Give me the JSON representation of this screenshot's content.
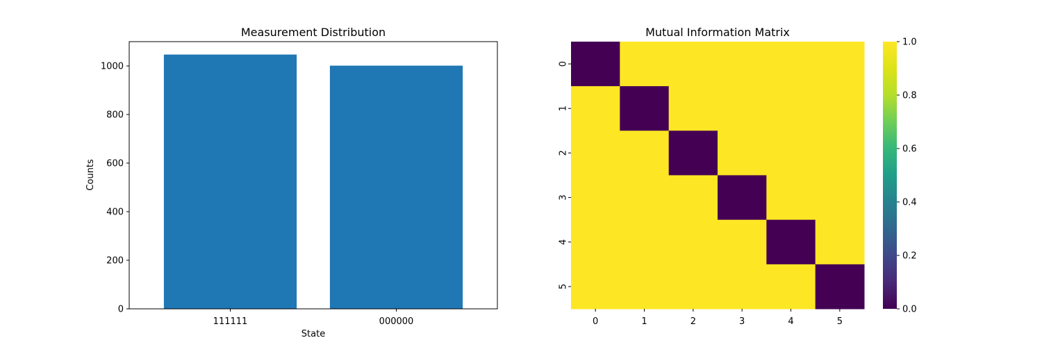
{
  "chart_data": [
    {
      "type": "bar",
      "title": "Measurement Distribution",
      "xlabel": "State",
      "ylabel": "Counts",
      "categories": [
        "111111",
        "000000"
      ],
      "values": [
        1047,
        1001
      ],
      "ylim": [
        0,
        1100
      ],
      "yticks": [
        0,
        200,
        400,
        600,
        800,
        1000
      ],
      "grid": false,
      "bar_color": "#1f77b4"
    },
    {
      "type": "heatmap",
      "title": "Mutual Information Matrix",
      "x_labels": [
        "0",
        "1",
        "2",
        "3",
        "4",
        "5"
      ],
      "y_labels": [
        "0",
        "1",
        "2",
        "3",
        "4",
        "5"
      ],
      "matrix": [
        [
          0,
          1,
          1,
          1,
          1,
          1
        ],
        [
          1,
          0,
          1,
          1,
          1,
          1
        ],
        [
          1,
          1,
          0,
          1,
          1,
          1
        ],
        [
          1,
          1,
          1,
          0,
          1,
          1
        ],
        [
          1,
          1,
          1,
          1,
          0,
          1
        ],
        [
          1,
          1,
          1,
          1,
          1,
          0
        ]
      ],
      "colormap": "viridis",
      "vmin": 0,
      "vmax": 1,
      "colorbar_ticks": [
        "0.0",
        "0.2",
        "0.4",
        "0.6",
        "0.8",
        "1.0"
      ]
    }
  ]
}
